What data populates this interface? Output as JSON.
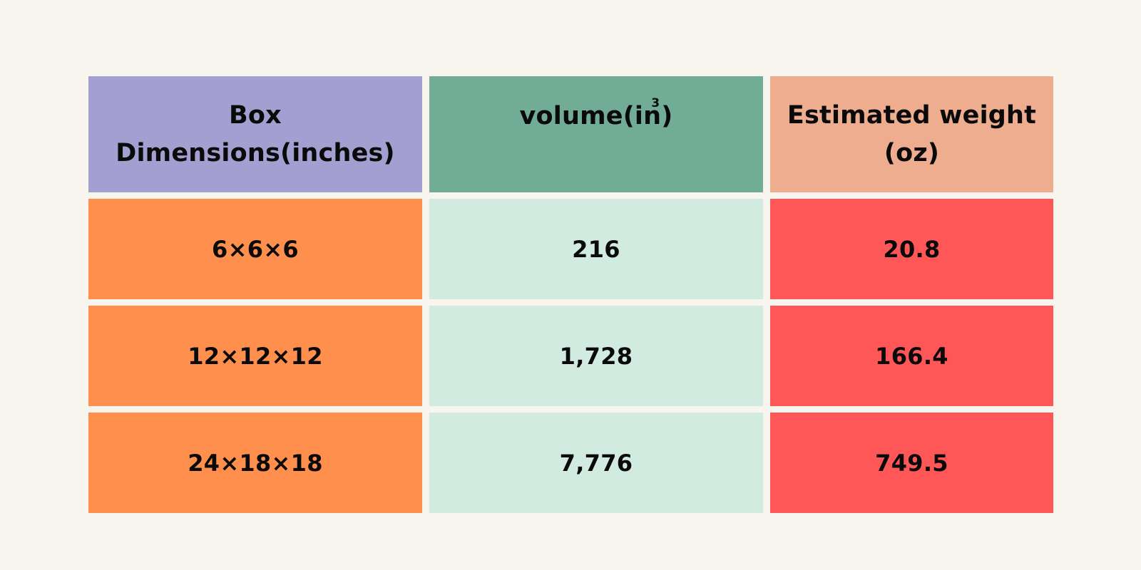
{
  "chart_data": {
    "type": "table",
    "columns": [
      {
        "label": "Box Dimensions(inches)",
        "header_color": "#a49fd1",
        "cell_color": "#ff8f4c"
      },
      {
        "label": "volume(in",
        "unit_superscript": "3",
        "label_suffix": ")",
        "header_color": "#71ac96",
        "cell_color": "#d2ebe1"
      },
      {
        "label": "Estimated weight (oz)",
        "header_color": "#efad90",
        "cell_color": "#ff5758"
      }
    ],
    "rows": [
      [
        "6×6×6",
        "216",
        "20.8"
      ],
      [
        "12×12×12",
        "1,728",
        "166.4"
      ],
      [
        "24×18×18",
        "7,776",
        "749.5"
      ]
    ]
  }
}
